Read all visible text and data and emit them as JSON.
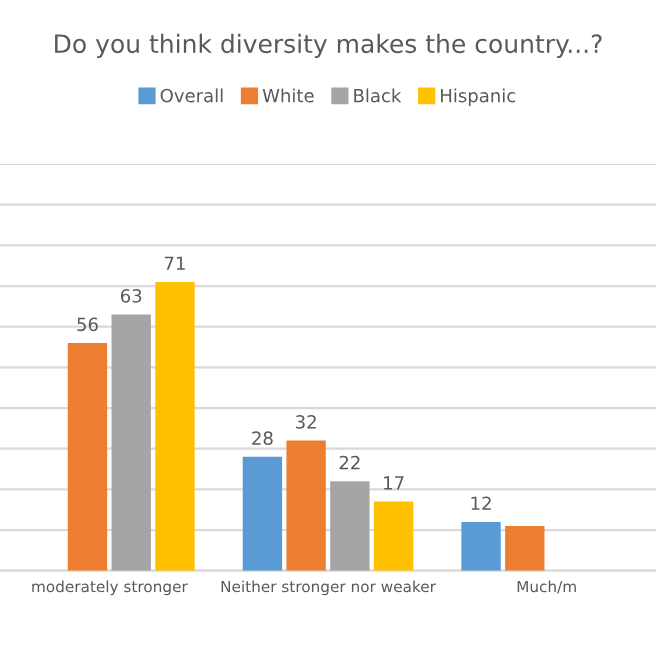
{
  "chart_data": {
    "type": "bar",
    "title": "Do you think diversity makes the country...?",
    "categories": [
      "moderately stronger",
      "Neither stronger nor weaker",
      "Much/m"
    ],
    "series": [
      {
        "name": "Overall",
        "color": "#5b9bd5",
        "values": [
          null,
          28,
          12
        ],
        "value_labels": [
          null,
          "28",
          "12"
        ]
      },
      {
        "name": "White",
        "color": "#ed7d31",
        "values": [
          56,
          32,
          11
        ],
        "value_labels": [
          "56",
          "32",
          null
        ]
      },
      {
        "name": "Black",
        "color": "#a5a5a5",
        "values": [
          63,
          22,
          null
        ],
        "value_labels": [
          "63",
          "22",
          null
        ]
      },
      {
        "name": "Hispanic",
        "color": "#ffc000",
        "values": [
          71,
          17,
          null
        ],
        "value_labels": [
          "71",
          "17",
          null
        ]
      }
    ],
    "ylim": [
      0,
      100
    ],
    "yticks": [
      {
        "value": 0,
        "label": null
      },
      {
        "value": 10,
        "label": null
      },
      {
        "value": 20,
        "label": null
      },
      {
        "value": 30,
        "label": null
      },
      {
        "value": 40,
        "label": null
      },
      {
        "value": 50,
        "label": null
      },
      {
        "value": 60,
        "label": null
      },
      {
        "value": 70,
        "label": null
      },
      {
        "value": 80,
        "label": null
      },
      {
        "value": 90,
        "label": null
      },
      {
        "value": 100,
        "label": null
      }
    ],
    "tick_labels": "x",
    "grid": "y",
    "legend": "top"
  }
}
